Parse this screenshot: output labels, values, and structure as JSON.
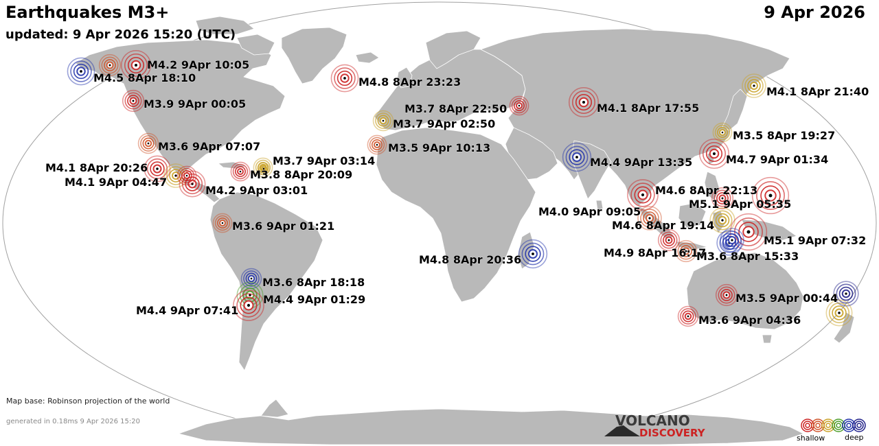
{
  "header": {
    "title": "Earthquakes M3+",
    "updated": "updated:  9 Apr 2026 15:20 (UTC)",
    "date": "9 Apr 2026"
  },
  "footer": {
    "map_base": "Map base: Robinson projection of the world",
    "generated": "generated in 0.18ms  9 Apr 2026 15:20"
  },
  "logo": {
    "line1": "VOLCANO",
    "line2": "DISCOVERY"
  },
  "legend": {
    "shallow": "shallow",
    "deep": "deep",
    "colors": [
      "#cc2222",
      "#d0542a",
      "#c9a227",
      "#4c9e2b",
      "#2233aa",
      "#222288"
    ]
  },
  "colors": {
    "ocean": "#ffffff",
    "land": "#b9b9b9",
    "border": "#ffffff",
    "outline": "#9a9a9a"
  },
  "quakes": [
    {
      "label": "M4.5  8Apr 18:10",
      "color": "#2233aa"
    },
    {
      "label": "M4.2  9Apr 10:05",
      "color": "#cc2222"
    },
    {
      "label": "M3.9  9Apr 00:05",
      "color": "#cc2222"
    },
    {
      "label": "M3.6  9Apr 07:07",
      "color": "#d0542a"
    },
    {
      "label": "M4.1  8Apr 20:26",
      "color": "#cc2222"
    },
    {
      "label": "M4.1  9Apr 04:47",
      "color": "#c9a227"
    },
    {
      "label": "M4.2  9Apr 03:01",
      "color": "#cc2222"
    },
    {
      "label": "M3.7  9Apr 03:14",
      "color": "#c9a227"
    },
    {
      "label": "M3.8  8Apr 20:09",
      "color": "#cc2222"
    },
    {
      "label": "M3.6  9Apr 01:21",
      "color": "#d0542a"
    },
    {
      "label": "M3.6  8Apr 18:18",
      "color": "#2233aa"
    },
    {
      "label": "M4.4  9Apr 01:29",
      "color": "#4c9e2b"
    },
    {
      "label": "M4.4  9Apr 07:41",
      "color": "#cc2222"
    },
    {
      "label": "M4.8  8Apr 23:23",
      "color": "#cc2222"
    },
    {
      "label": "M3.7  8Apr 22:50",
      "color": "#cc2222"
    },
    {
      "label": "M3.7  9Apr 02:50",
      "color": "#c9a227"
    },
    {
      "label": "M3.5  9Apr 10:13",
      "color": "#d0542a"
    },
    {
      "label": "M4.1  8Apr 17:55",
      "color": "#cc2222"
    },
    {
      "label": "M4.4  9Apr 13:35",
      "color": "#2233aa"
    },
    {
      "label": "M4.8  8Apr 20:36",
      "color": "#2233aa"
    },
    {
      "label": "M4.1  8Apr 21:40",
      "color": "#c9a227"
    },
    {
      "label": "M3.5  8Apr 19:27",
      "color": "#c9a227"
    },
    {
      "label": "M4.7  9Apr 01:34",
      "color": "#cc2222"
    },
    {
      "label": "M4.6  8Apr 22:13",
      "color": "#cc2222"
    },
    {
      "label": "M4.0  9Apr 09:05",
      "color": "#d0542a"
    },
    {
      "label": "M5.1  9Apr 05:35",
      "color": "#cc2222"
    },
    {
      "label": "M4.6  8Apr 19:14",
      "color": "#c9a227"
    },
    {
      "label": "M5.1  9Apr 07:32",
      "color": "#cc2222"
    },
    {
      "label": "M4.9  8Apr 16:17",
      "color": "#cc2222"
    },
    {
      "label": "M3.6  8Apr 15:33",
      "color": "#2233aa"
    },
    {
      "label": "M3.5  9Apr 00:44",
      "color": "#cc2222"
    },
    {
      "label": "M3.6  9Apr 04:36",
      "color": "#cc2222"
    },
    {
      "label": "",
      "color": "#222288"
    },
    {
      "label": "",
      "color": "#c9a227"
    },
    {
      "label": "",
      "color": "#d0542a"
    },
    {
      "label": "",
      "color": "#cc2222"
    },
    {
      "label": "",
      "color": "#c9a227"
    },
    {
      "label": "",
      "color": "#2233aa"
    },
    {
      "label": "",
      "color": "#cc2222"
    },
    {
      "label": "",
      "color": "#d0542a"
    }
  ]
}
